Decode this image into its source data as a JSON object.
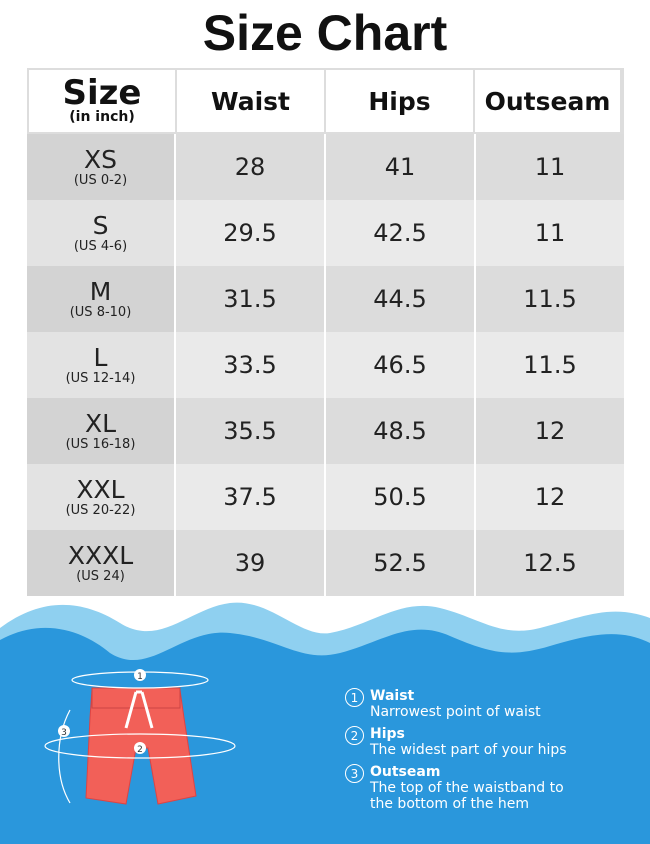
{
  "title": "Size Chart",
  "table": {
    "header": {
      "size": "Size",
      "size_note": "(in inch)",
      "columns": [
        "Waist",
        "Hips",
        "Outseam"
      ]
    },
    "rows": [
      {
        "size": "XS",
        "us": "(US 0-2)",
        "values": [
          "28",
          "41",
          "11"
        ]
      },
      {
        "size": "S",
        "us": "(US 4-6)",
        "values": [
          "29.5",
          "42.5",
          "11"
        ]
      },
      {
        "size": "M",
        "us": "(US 8-10)",
        "values": [
          "31.5",
          "44.5",
          "11.5"
        ]
      },
      {
        "size": "L",
        "us": "(US 12-14)",
        "values": [
          "33.5",
          "46.5",
          "11.5"
        ]
      },
      {
        "size": "XL",
        "us": "(US 16-18)",
        "values": [
          "35.5",
          "48.5",
          "12"
        ]
      },
      {
        "size": "XXL",
        "us": "(US 20-22)",
        "values": [
          "37.5",
          "50.5",
          "12"
        ]
      },
      {
        "size": "XXXL",
        "us": "(US 24)",
        "values": [
          "39",
          "52.5",
          "12.5"
        ]
      }
    ]
  },
  "legend": {
    "items": [
      {
        "number": "1",
        "title": "Waist",
        "lines": [
          "Narrowest point of waist"
        ]
      },
      {
        "number": "2",
        "title": "Hips",
        "lines": [
          "The widest part of your hips"
        ]
      },
      {
        "number": "3",
        "title": "Outseam",
        "lines": [
          "The top of the waistband to",
          "the bottom of the hem"
        ]
      }
    ]
  }
}
